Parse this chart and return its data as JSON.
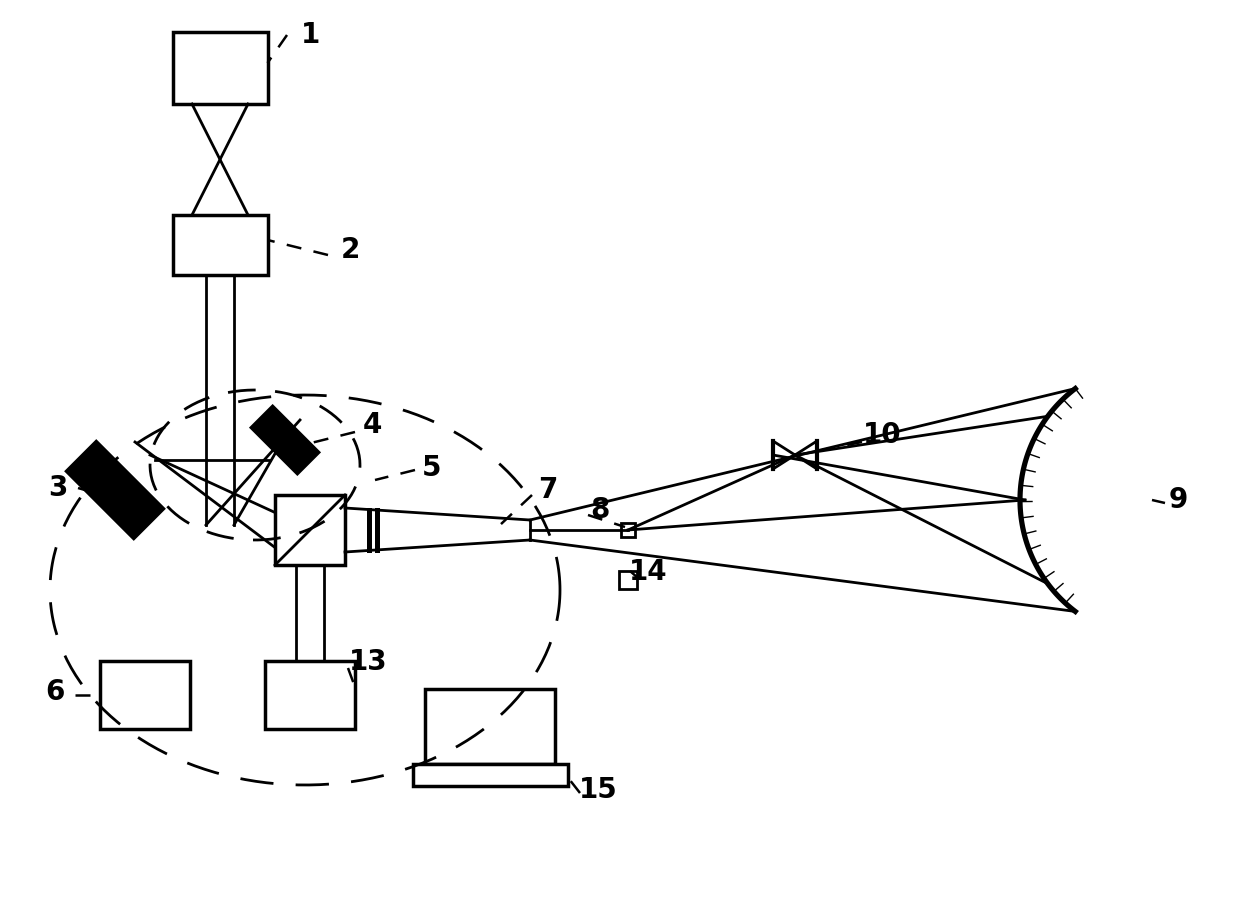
{
  "bg_color": "#ffffff",
  "line_color": "#000000",
  "figsize": [
    12.4,
    9.1
  ],
  "dpi": 100,
  "lw": 2.0,
  "lw_thick": 2.5
}
